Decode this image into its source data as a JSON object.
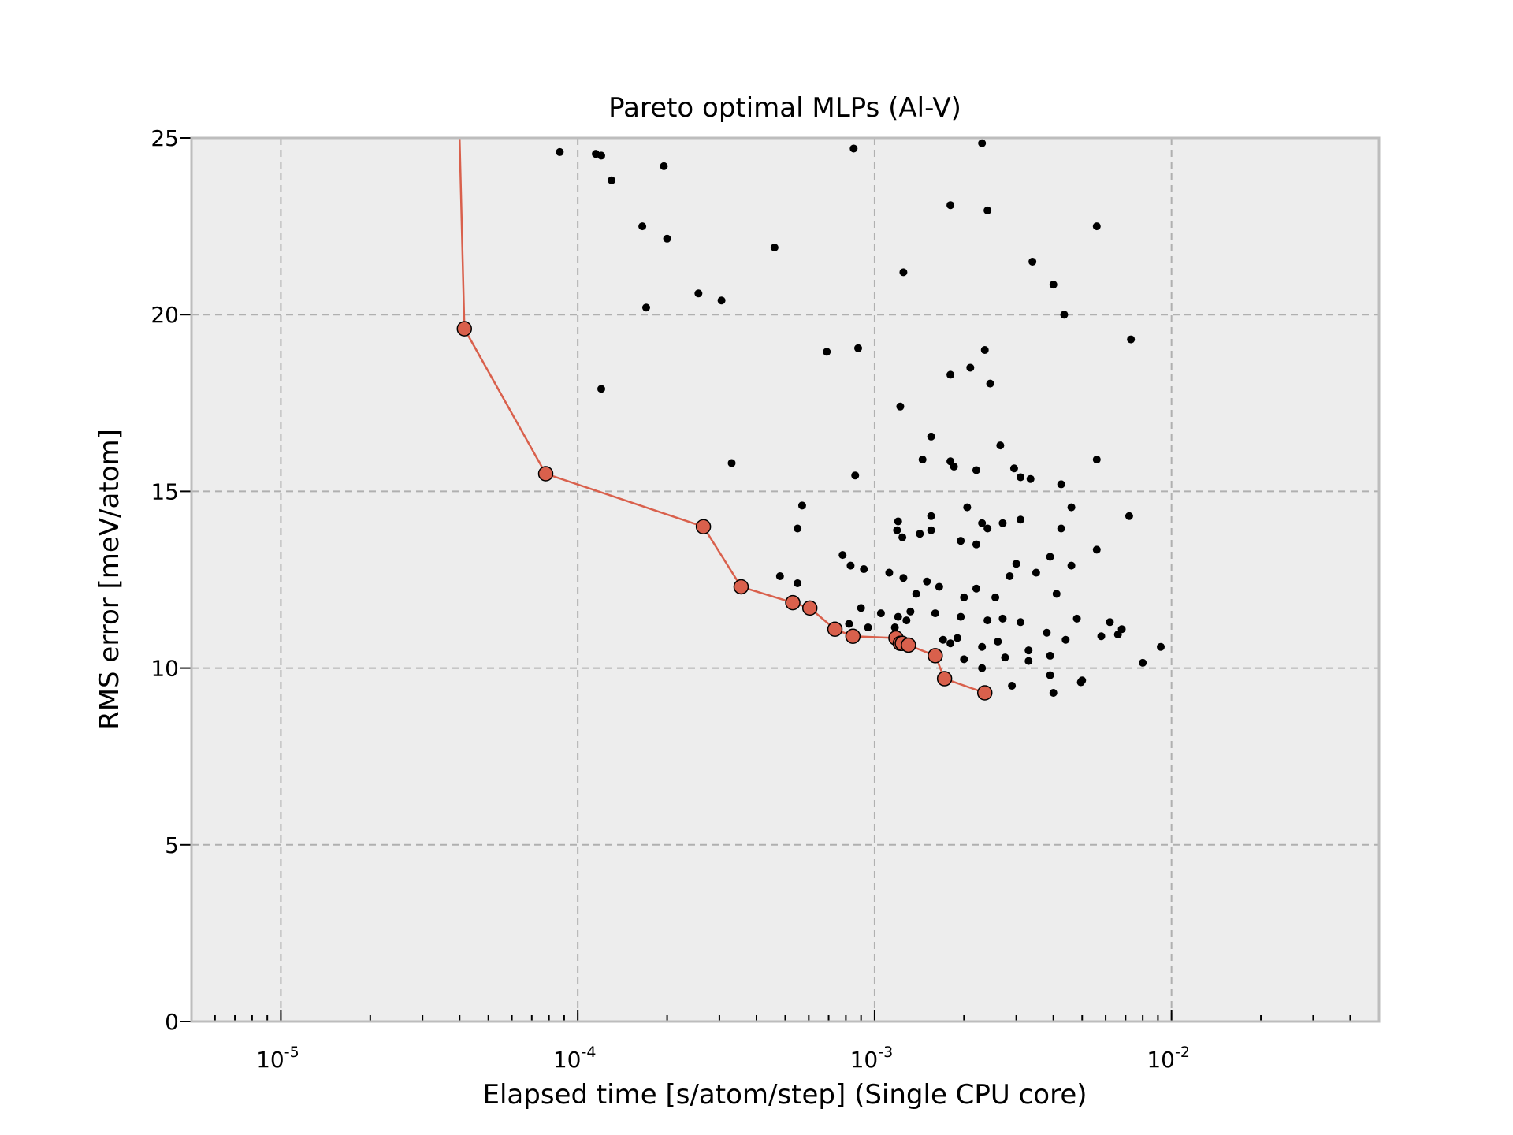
{
  "chart_data": {
    "type": "scatter",
    "title": "Pareto optimal MLPs (Al-V)",
    "xlabel": "Elapsed time [s/atom/step] (Single CPU core)",
    "ylabel": "RMS error [meV/atom]",
    "xscale": "log",
    "xlim": [
      5e-06,
      0.05
    ],
    "ylim": [
      0,
      25
    ],
    "grid": true,
    "background": "#ededed",
    "colors": {
      "pareto": "#d9604c",
      "points": "#000000"
    },
    "x_ticks": [
      {
        "base": "10",
        "exp": "-5",
        "value": 1e-05
      },
      {
        "base": "10",
        "exp": "-4",
        "value": 0.0001
      },
      {
        "base": "10",
        "exp": "-3",
        "value": 0.001
      },
      {
        "base": "10",
        "exp": "-2",
        "value": 0.01
      }
    ],
    "y_ticks": [
      {
        "label": "0",
        "value": 0
      },
      {
        "label": "5",
        "value": 5
      },
      {
        "label": "10",
        "value": 10
      },
      {
        "label": "15",
        "value": 15
      },
      {
        "label": "20",
        "value": 20
      },
      {
        "label": "25",
        "value": 25
      }
    ],
    "series": [
      {
        "role": "pareto-front",
        "x": [
          4e-05,
          4.15e-05,
          7.8e-05,
          0.000265,
          0.000355,
          0.00053,
          0.000605,
          0.000735,
          0.000845,
          0.00118,
          0.00122,
          0.00124,
          0.0013,
          0.0016,
          0.00172,
          0.00235
        ],
        "y": [
          25,
          19.6,
          15.5,
          14.0,
          12.3,
          11.85,
          11.7,
          11.1,
          10.9,
          10.85,
          10.7,
          10.7,
          10.65,
          10.35,
          9.7,
          9.3
        ]
      },
      {
        "role": "all-models",
        "x": [
          8.7e-05,
          0.000115,
          0.00012,
          0.00013,
          0.000195,
          0.000165,
          0.0002,
          0.00017,
          0.00046,
          0.000255,
          0.000305,
          0.00012,
          0.00033,
          0.00085,
          0.0023,
          0.0018,
          0.0024,
          0.0056,
          0.00125,
          0.0034,
          0.004,
          0.00435,
          0.0073,
          0.00069,
          0.00088,
          0.00235,
          0.0021,
          0.0018,
          0.00245,
          0.00122,
          0.00155,
          0.00265,
          0.00145,
          0.0018,
          0.00185,
          0.0022,
          0.00295,
          0.0031,
          0.00335,
          0.00425,
          0.0056,
          0.00086,
          0.00057,
          0.00055,
          0.0012,
          0.00155,
          0.00205,
          0.0023,
          0.0031,
          0.0072,
          0.00119,
          0.00124,
          0.00142,
          0.00155,
          0.00195,
          0.0022,
          0.0024,
          0.0027,
          0.00425,
          0.0046,
          0.0056,
          0.0039,
          0.00048,
          0.00055,
          0.00078,
          0.00083,
          0.00092,
          0.00112,
          0.00125,
          0.00138,
          0.0015,
          0.00165,
          0.002,
          0.0022,
          0.00255,
          0.00285,
          0.003,
          0.0035,
          0.0041,
          0.0046,
          0.0009,
          0.00105,
          0.0012,
          0.00132,
          0.0016,
          0.00195,
          0.0024,
          0.0027,
          0.0031,
          0.0038,
          0.0048,
          0.0062,
          0.0068,
          0.00082,
          0.00095,
          0.00117,
          0.00128,
          0.0017,
          0.0019,
          0.0023,
          0.0026,
          0.0033,
          0.0039,
          0.0044,
          0.0058,
          0.0066,
          0.0092,
          0.008,
          0.0023,
          0.0029,
          0.0033,
          0.0039,
          0.00495,
          0.005,
          0.004,
          0.0018,
          0.002,
          0.00275
        ],
        "y": [
          24.6,
          24.55,
          24.5,
          23.8,
          24.2,
          22.5,
          22.15,
          20.2,
          21.9,
          20.6,
          20.4,
          17.9,
          15.8,
          24.7,
          24.85,
          23.1,
          22.95,
          22.5,
          21.2,
          21.5,
          20.85,
          20.0,
          19.3,
          18.95,
          19.05,
          19.0,
          18.5,
          18.3,
          18.05,
          17.4,
          16.55,
          16.3,
          15.9,
          15.85,
          15.7,
          15.6,
          15.65,
          15.4,
          15.35,
          15.2,
          15.9,
          15.45,
          14.6,
          13.95,
          14.15,
          14.3,
          14.55,
          14.1,
          14.2,
          14.3,
          13.9,
          13.7,
          13.8,
          13.9,
          13.6,
          13.5,
          13.95,
          14.1,
          13.95,
          14.55,
          13.35,
          13.15,
          12.6,
          12.4,
          13.2,
          12.9,
          12.8,
          12.7,
          12.55,
          12.1,
          12.45,
          12.3,
          12.0,
          12.25,
          12.0,
          12.6,
          12.95,
          12.7,
          12.1,
          12.9,
          11.7,
          11.55,
          11.45,
          11.6,
          11.55,
          11.45,
          11.35,
          11.4,
          11.3,
          11.0,
          11.4,
          11.3,
          11.1,
          11.25,
          11.15,
          11.15,
          11.35,
          10.8,
          10.85,
          10.6,
          10.75,
          10.5,
          10.35,
          10.8,
          10.9,
          10.95,
          10.6,
          10.15,
          10.0,
          9.5,
          10.2,
          9.8,
          9.6,
          9.65,
          9.3,
          10.7,
          10.25,
          10.3
        ]
      }
    ]
  }
}
